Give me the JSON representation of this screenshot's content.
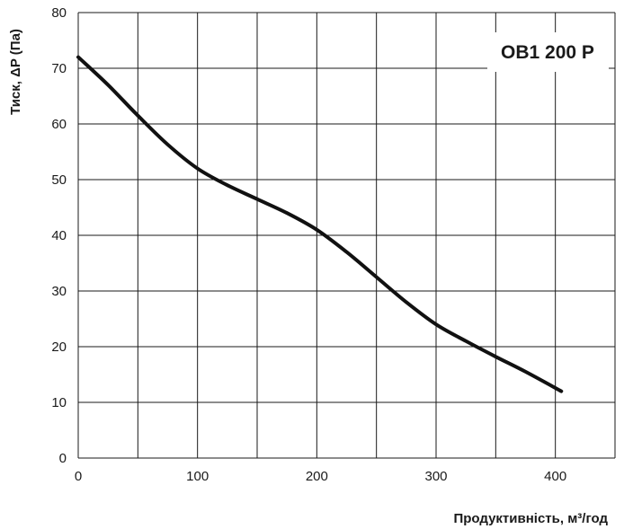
{
  "chart_data": {
    "type": "line",
    "title": "OB1 200 P",
    "xlabel": "Продуктивність, м³/год",
    "ylabel": "Тиск, ΔP (Па)",
    "xlim": [
      0,
      450
    ],
    "ylim": [
      0,
      80
    ],
    "x_ticks": [
      0,
      100,
      200,
      300,
      400
    ],
    "y_ticks": [
      0,
      10,
      20,
      30,
      40,
      50,
      60,
      70,
      80
    ],
    "grid": true,
    "series": [
      {
        "x": [
          0,
          25,
          50,
          75,
          100,
          125,
          150,
          175,
          200,
          225,
          250,
          275,
          300,
          325,
          350,
          375,
          405
        ],
        "y": [
          72,
          67,
          61.5,
          56.3,
          52,
          49,
          46.5,
          44,
          41,
          37,
          32.5,
          28,
          24,
          21,
          18.2,
          15.5,
          12
        ]
      }
    ]
  },
  "colors": {
    "line": "#111111",
    "grid": "#1a1a1a",
    "background": "#ffffff",
    "text": "#1a1a1a"
  }
}
